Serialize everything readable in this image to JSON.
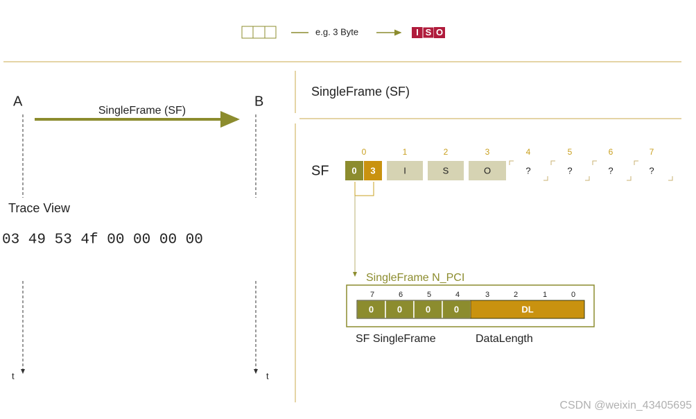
{
  "legend": {
    "example": "e.g. 3 Byte",
    "iso": [
      "I",
      "S",
      "O"
    ]
  },
  "sequence": {
    "node_a": "A",
    "node_b": "B",
    "message": "SingleFrame (SF)",
    "trace_label": "Trace View",
    "trace_bytes": "03 49 53 4f 00 00 00 00",
    "time_labels": [
      "t",
      "t"
    ]
  },
  "frame": {
    "title": "SingleFrame (SF)",
    "row_label": "SF",
    "byte_indices": [
      0,
      1,
      2,
      3,
      4,
      5,
      6,
      7
    ],
    "pci_nibbles": [
      0,
      3
    ],
    "payload": [
      "I",
      "S",
      "O",
      "?",
      "?",
      "?",
      "?"
    ]
  },
  "pci": {
    "title": "SingleFrame N_PCI",
    "bit_indices": [
      7,
      6,
      5,
      4,
      3,
      2,
      1,
      0
    ],
    "bits": [
      0,
      0,
      0,
      0
    ],
    "dl": "DL",
    "labels": [
      "SF SingleFrame",
      "DataLength"
    ]
  },
  "watermark": "CSDN @weixin_43405695"
}
